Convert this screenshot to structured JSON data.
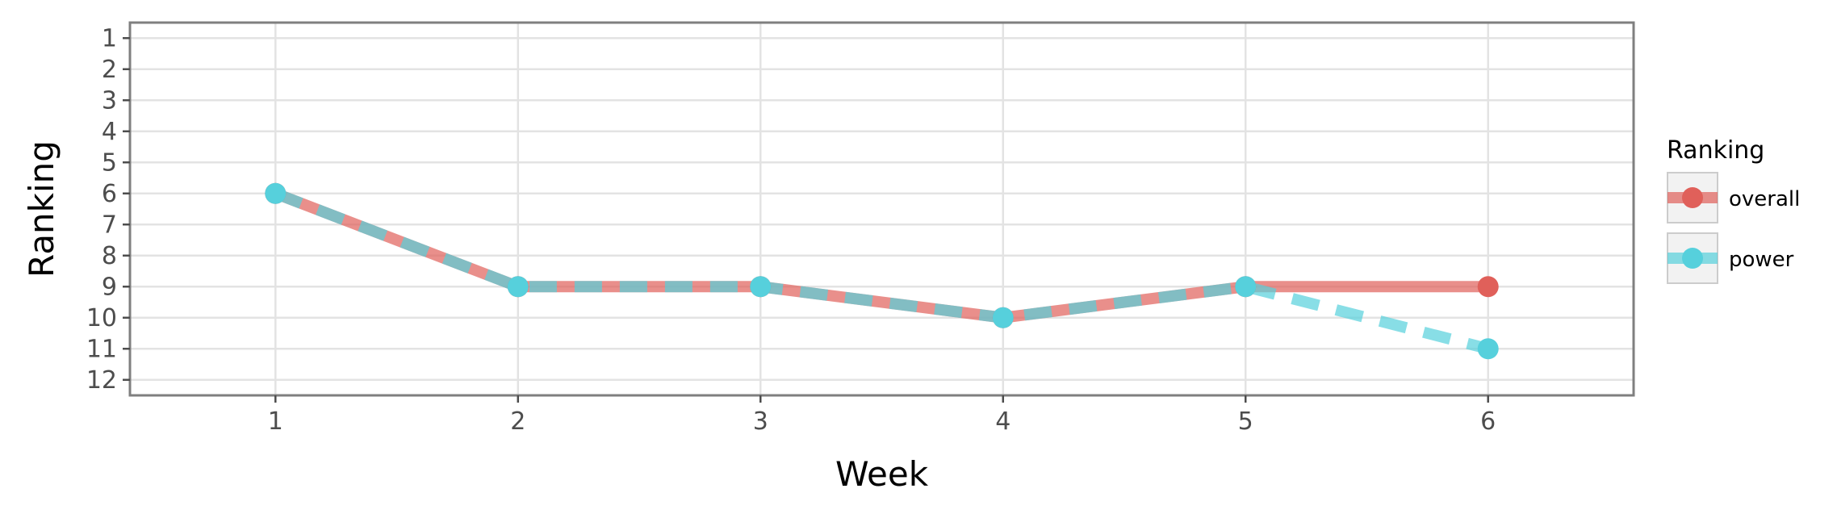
{
  "chart_data": {
    "type": "line",
    "xlabel": "Week",
    "ylabel": "Ranking",
    "x": [
      1,
      2,
      3,
      4,
      5,
      6
    ],
    "x_ticks": [
      "1",
      "2",
      "3",
      "4",
      "5",
      "6"
    ],
    "y_ticks": [
      "1",
      "2",
      "3",
      "4",
      "5",
      "6",
      "7",
      "8",
      "9",
      "10",
      "11",
      "12"
    ],
    "xlim": [
      0.4,
      6.6
    ],
    "ylim": [
      12.5,
      0.5
    ],
    "y_reversed": true,
    "grid": true,
    "legend": {
      "title": "Ranking",
      "position": "right"
    },
    "series": [
      {
        "name": "overall",
        "values": [
          6,
          9,
          9,
          10,
          9,
          9
        ],
        "color": "#e0605a",
        "line_style": "solid"
      },
      {
        "name": "power",
        "values": [
          6,
          9,
          9,
          10,
          9,
          11
        ],
        "color": "#56d0dc",
        "line_style": "dashed"
      }
    ]
  }
}
